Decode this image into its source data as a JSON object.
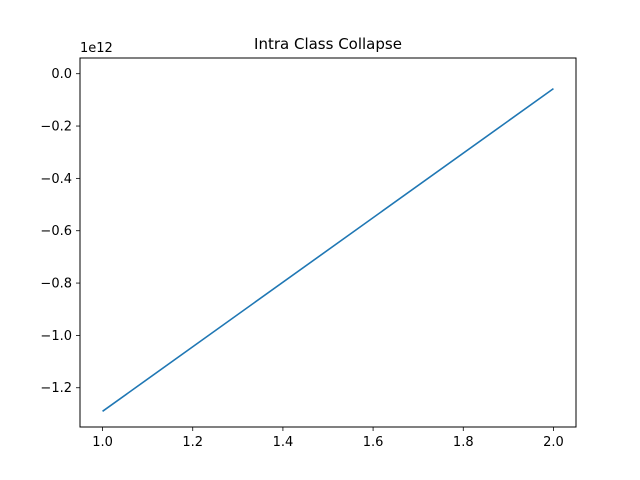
{
  "chart_data": {
    "type": "line",
    "title": "Intra Class  Collapse",
    "xlabel": "",
    "ylabel": "",
    "y_offset_label": "1e12",
    "xlim": [
      0.95,
      2.05
    ],
    "ylim": [
      -1.35,
      0.06
    ],
    "x_ticks": [
      1.0,
      1.2,
      1.4,
      1.6,
      1.8,
      2.0
    ],
    "x_tick_labels": [
      "1.0",
      "1.2",
      "1.4",
      "1.6",
      "1.8",
      "2.0"
    ],
    "y_ticks": [
      0.0,
      -0.2,
      -0.4,
      -0.6,
      -0.8,
      -1.0,
      -1.2
    ],
    "y_tick_labels": [
      "0.0",
      "−0.2",
      "−0.4",
      "−0.6",
      "−0.8",
      "−1.0",
      "−1.2"
    ],
    "grid": false,
    "series": [
      {
        "color": "#1f77b4",
        "x": [
          1.0,
          2.0
        ],
        "y": [
          -1.29,
          -0.057
        ]
      }
    ]
  }
}
